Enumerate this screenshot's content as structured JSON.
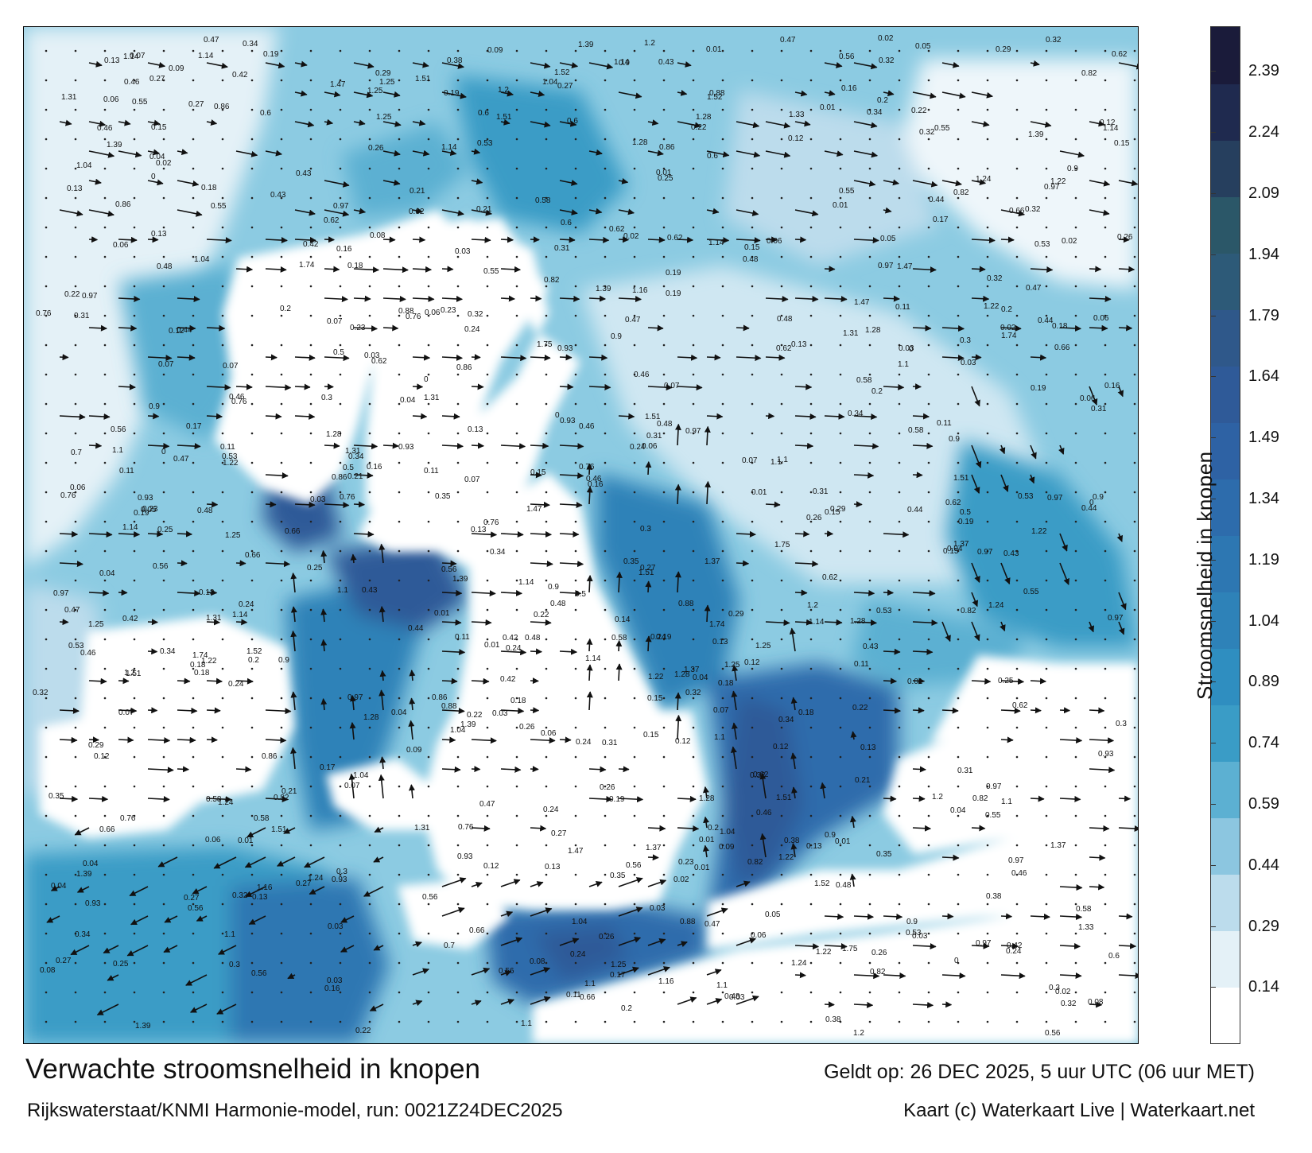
{
  "title": "Verwachte stroomsnelheid in knopen",
  "subtitle": "Rijkswaterstaat/KNMI Harmonie-model, run: 0021Z24DEC2025",
  "valid_time": "Geldt op: 26 DEC 2025, 5 uur UTC (06 uur MET)",
  "credit": "Kaart (c) Waterkaart Live | Waterkaart.net",
  "colorbar": {
    "label": "Stroomsnelheid in knopen",
    "ticks": [
      "2.39",
      "2.24",
      "2.09",
      "1.94",
      "1.79",
      "1.64",
      "1.49",
      "1.34",
      "1.19",
      "1.04",
      "0.89",
      "0.74",
      "0.59",
      "0.44",
      "0.29",
      "0.14"
    ],
    "tick_values": [
      2.39,
      2.24,
      2.09,
      1.94,
      1.79,
      1.64,
      1.49,
      1.34,
      1.19,
      1.04,
      0.89,
      0.74,
      0.59,
      0.44,
      0.29,
      0.14
    ],
    "range": [
      0,
      2.5
    ],
    "colors": [
      "#ffffff",
      "#e4f1f7",
      "#bcdcec",
      "#8cc6e0",
      "#5cb0d2",
      "#3a9cc6",
      "#2f8ec0",
      "#2e82b8",
      "#2d77b2",
      "#2d6cac",
      "#2e62a4",
      "#2f5a98",
      "#2f588a",
      "#2d5a78",
      "#2b5768",
      "#263f5e",
      "#1f2a4f",
      "#1a1b3a"
    ]
  },
  "map_labels": {
    "sample_values": [
      "0.24",
      "0.16",
      "0.32",
      "0.25",
      "0.29",
      "0.31",
      "0.44",
      "0.26",
      "0.19",
      "0.34",
      "0.21",
      "0.15",
      "0.18",
      "0.38",
      "0.27",
      "0.11",
      "0.22",
      "0.35",
      "0.42",
      "0.53",
      "0.7",
      "0.9",
      "0.82",
      "0.86",
      "0.56",
      "0.46",
      "0.48",
      "0.12",
      "0.09",
      "0.08",
      "0.07",
      "0.13",
      "0.14",
      "0.3",
      "0.5",
      "0.6",
      "0.66",
      "0.76",
      "0.88",
      "1.2",
      "1.37",
      "1.33",
      "1.14",
      "1.16",
      "1.52",
      "1.51",
      "1.75",
      "1.74",
      "1.31",
      "1.04",
      "0.93",
      "0.97",
      "1.1",
      "1.22",
      "1.24",
      "1.25",
      "1.28",
      "1.39",
      "1.47",
      "0.62",
      "0.58",
      "0.55",
      "0.47",
      "0.43",
      "0.23",
      "0.2",
      "0.17",
      "0.06",
      "0.05",
      "0.04",
      "0.03",
      "0.02",
      "0.01",
      "0"
    ]
  },
  "colors": {
    "map_border": "#000000",
    "arrow": "#111111",
    "land": "#ffffff"
  }
}
